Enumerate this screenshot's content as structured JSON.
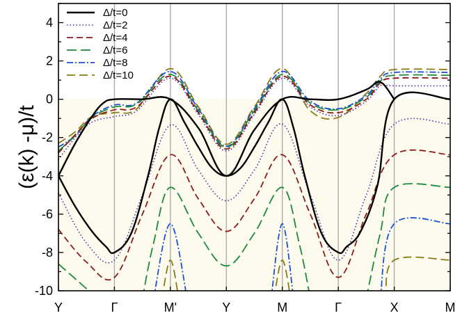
{
  "chart_data": {
    "type": "line",
    "title": "",
    "xlabel": "",
    "ylabel": "(ε(k) -μ)/t",
    "ylim": [
      -10,
      5
    ],
    "yticks": [
      4,
      2,
      0,
      -2,
      -4,
      -6,
      -8,
      -10
    ],
    "categories": [
      "Y",
      "Γ",
      "M'",
      "Y",
      "M",
      "Γ",
      "X",
      "M"
    ],
    "grid": "vertical lines at high-symmetry points",
    "shaded_region": {
      "y_from": -10,
      "y_to": 0,
      "color": "#fdfbee"
    },
    "legend_position": "top-left",
    "series": [
      {
        "name": "Δ/t=0",
        "color": "#000000",
        "dash": "solid",
        "width": 2.4,
        "lines": [
          [
            [
              0,
              -4
            ],
            [
              0.3,
              -2.3
            ],
            [
              0.6,
              -0.9
            ],
            [
              0.8,
              -0.2
            ],
            [
              1,
              0
            ],
            [
              1.5,
              0
            ],
            [
              2,
              0
            ],
            [
              2.5,
              -1.5
            ],
            [
              3,
              -4
            ],
            [
              3.5,
              -1.6
            ],
            [
              4,
              0
            ],
            [
              4.5,
              0
            ],
            [
              5,
              0
            ],
            [
              5.5,
              0.5
            ],
            [
              5.75,
              0.9
            ],
            [
              6,
              0
            ]
          ],
          [
            [
              0,
              -4
            ],
            [
              0.3,
              -5.6
            ],
            [
              0.6,
              -6.9
            ],
            [
              0.85,
              -7.7
            ],
            [
              1,
              -8
            ],
            [
              1.3,
              -7
            ],
            [
              1.6,
              -4
            ],
            [
              1.8,
              -1.5
            ],
            [
              2,
              0
            ],
            [
              2.25,
              -1.2
            ],
            [
              2.5,
              -2.5
            ],
            [
              2.75,
              -3.6
            ],
            [
              3,
              -4
            ],
            [
              3.25,
              -3.6
            ],
            [
              3.5,
              -2.5
            ],
            [
              3.75,
              -1.2
            ],
            [
              4,
              0
            ],
            [
              4.2,
              -1.5
            ],
            [
              4.4,
              -4
            ],
            [
              4.7,
              -7
            ],
            [
              5,
              -8
            ],
            [
              5.15,
              -7.7
            ],
            [
              5.4,
              -6.9
            ],
            [
              5.7,
              -4.5
            ],
            [
              6,
              0
            ],
            [
              7,
              0
            ]
          ]
        ]
      },
      {
        "name": "Δ/t=2",
        "color": "#4b2aa8",
        "dash": "1.5 3",
        "width": 1.6,
        "lines": [
          [
            [
              0,
              -3.15
            ],
            [
              0.3,
              -2
            ],
            [
              0.6,
              -1.2
            ],
            [
              1,
              -0.9
            ],
            [
              1.4,
              -0.6
            ],
            [
              2,
              1.1
            ],
            [
              2.5,
              -0.8
            ],
            [
              3,
              -2.7
            ],
            [
              3.5,
              -0.8
            ],
            [
              4,
              1.1
            ],
            [
              4.5,
              -0.4
            ],
            [
              5,
              -0.85
            ],
            [
              5.5,
              -0.1
            ],
            [
              5.75,
              0.7
            ],
            [
              6,
              0.7
            ],
            [
              7,
              0.7
            ]
          ],
          [
            [
              0,
              -4.9
            ],
            [
              0.5,
              -7.5
            ],
            [
              1,
              -8.4
            ],
            [
              1.5,
              -5
            ],
            [
              2,
              -1.35
            ],
            [
              2.5,
              -3.7
            ],
            [
              3,
              -5.3
            ],
            [
              3.5,
              -3.7
            ],
            [
              4,
              -1.3
            ],
            [
              4.5,
              -5
            ],
            [
              5,
              -8.4
            ],
            [
              5.5,
              -5
            ],
            [
              6,
              -1.3
            ],
            [
              7,
              -1.3
            ]
          ]
        ]
      },
      {
        "name": "Δ/t=4",
        "color": "#8b1a1a",
        "dash": "9 5",
        "width": 1.8,
        "lines": [
          [
            [
              0,
              -2.8
            ],
            [
              0.3,
              -1.85
            ],
            [
              0.6,
              -1
            ],
            [
              1,
              -0.55
            ],
            [
              1.4,
              -0.4
            ],
            [
              2,
              1.2
            ],
            [
              2.5,
              -0.7
            ],
            [
              3,
              -2.6
            ],
            [
              3.5,
              -0.7
            ],
            [
              4,
              1.2
            ],
            [
              4.5,
              -0.3
            ],
            [
              5,
              -0.7
            ],
            [
              5.5,
              0
            ],
            [
              5.75,
              0.85
            ],
            [
              6,
              1.1
            ],
            [
              7,
              1.1
            ]
          ],
          [
            [
              0,
              -6.8
            ],
            [
              0.5,
              -8.5
            ],
            [
              1,
              -9.3
            ],
            [
              1.5,
              -6
            ],
            [
              2,
              -2.9
            ],
            [
              2.5,
              -5.2
            ],
            [
              3,
              -6.9
            ],
            [
              3.5,
              -5.2
            ],
            [
              4,
              -2.9
            ],
            [
              4.5,
              -6
            ],
            [
              5,
              -9.3
            ],
            [
              5.5,
              -6
            ],
            [
              6,
              -2.9
            ],
            [
              7,
              -2.9
            ]
          ]
        ]
      },
      {
        "name": "Δ/t=6",
        "color": "#1a8a3a",
        "dash": "14 6",
        "width": 1.8,
        "lines": [
          [
            [
              0,
              -2.7
            ],
            [
              0.3,
              -1.9
            ],
            [
              0.6,
              -0.95
            ],
            [
              1,
              -0.4
            ],
            [
              1.4,
              -0.25
            ],
            [
              2,
              1.3
            ],
            [
              2.5,
              -0.6
            ],
            [
              3,
              -2.5
            ],
            [
              3.5,
              -0.6
            ],
            [
              4,
              1.3
            ],
            [
              4.5,
              -0.2
            ],
            [
              5,
              -0.55
            ],
            [
              5.5,
              0.1
            ],
            [
              5.75,
              0.95
            ],
            [
              6,
              1.25
            ],
            [
              7,
              1.25
            ]
          ],
          [
            [
              0,
              -8.6
            ],
            [
              0.35,
              -9.5
            ],
            [
              0.7,
              -10.4
            ]
          ],
          [
            [
              1.5,
              -10.4
            ],
            [
              1.7,
              -7.5
            ],
            [
              2,
              -4.6
            ],
            [
              2.5,
              -7
            ],
            [
              3,
              -8.7
            ],
            [
              3.5,
              -7
            ],
            [
              4,
              -4.6
            ],
            [
              4.3,
              -7.5
            ],
            [
              4.5,
              -10.4
            ]
          ],
          [
            [
              5.5,
              -10.4
            ],
            [
              5.75,
              -7
            ],
            [
              6,
              -4.6
            ],
            [
              7,
              -4.6
            ]
          ]
        ]
      },
      {
        "name": "Δ/t=8",
        "color": "#1a4fd6",
        "dash": "9 3 2 3",
        "width": 1.8,
        "lines": [
          [
            [
              0,
              -2.5
            ],
            [
              0.3,
              -1.9
            ],
            [
              0.6,
              -0.9
            ],
            [
              1,
              -0.3
            ],
            [
              1.4,
              -0.2
            ],
            [
              2,
              1.45
            ],
            [
              2.5,
              -0.5
            ],
            [
              3,
              -2.45
            ],
            [
              3.5,
              -0.5
            ],
            [
              4,
              1.45
            ],
            [
              4.5,
              -0.1
            ],
            [
              5,
              -0.5
            ],
            [
              5.5,
              0.2
            ],
            [
              5.75,
              1.05
            ],
            [
              6,
              1.4
            ],
            [
              7,
              1.4
            ]
          ],
          [
            [
              1.7,
              -10.4
            ],
            [
              2,
              -6.5
            ],
            [
              2.3,
              -10.4
            ]
          ],
          [
            [
              3.8,
              -10.4
            ],
            [
              4,
              -6.5
            ],
            [
              4.2,
              -10.4
            ]
          ],
          [
            [
              5.75,
              -10.4
            ],
            [
              6,
              -6.5
            ],
            [
              7,
              -6.5
            ]
          ]
        ]
      },
      {
        "name": "Δ/t=10",
        "color": "#8a7a12",
        "dash": "12 6",
        "width": 1.8,
        "lines": [
          [
            [
              0,
              -2.3
            ],
            [
              0.3,
              -1.7
            ],
            [
              0.6,
              -0.9
            ],
            [
              1,
              -0.7
            ],
            [
              1.4,
              -0.5
            ],
            [
              2,
              1.6
            ],
            [
              2.5,
              -0.4
            ],
            [
              3,
              -2.35
            ],
            [
              3.5,
              -0.4
            ],
            [
              4,
              1.6
            ],
            [
              4.5,
              -0.6
            ],
            [
              5,
              -0.95
            ],
            [
              5.5,
              0.3
            ],
            [
              5.75,
              1.2
            ],
            [
              6,
              1.55
            ],
            [
              7,
              1.55
            ]
          ],
          [
            [
              1.85,
              -10.4
            ],
            [
              2,
              -8.4
            ],
            [
              2.15,
              -10.4
            ]
          ],
          [
            [
              3.85,
              -10.4
            ],
            [
              4,
              -8.4
            ],
            [
              4.15,
              -10.4
            ]
          ],
          [
            [
              5.85,
              -10.4
            ],
            [
              6,
              -8.4
            ],
            [
              7,
              -8.4
            ]
          ]
        ]
      }
    ]
  }
}
